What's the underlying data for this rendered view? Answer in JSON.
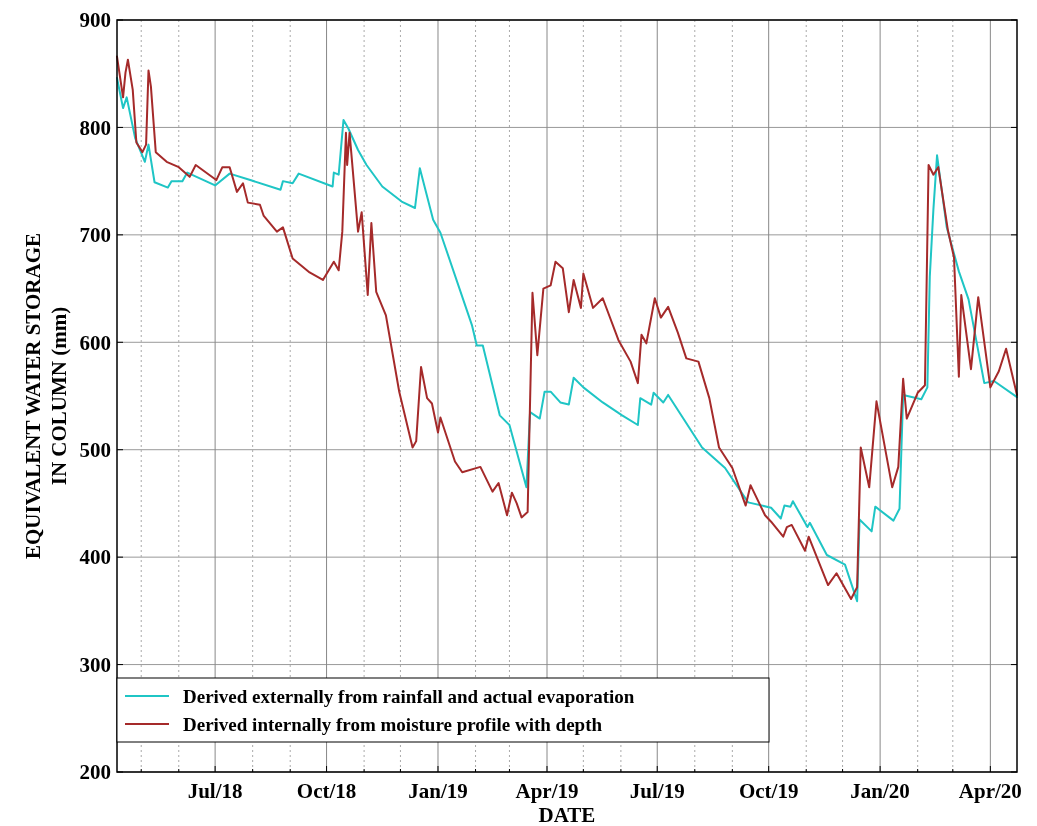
{
  "chart_data": {
    "type": "line",
    "xlabel": "DATE",
    "ylabel": "EQUIVALENT WATER STORAGE\nIN COLUMN (mm)",
    "xlim": [
      "2018-04-11",
      "2020-04-23"
    ],
    "xticks": [
      {
        "value": "2018-05-01",
        "label": null
      },
      {
        "value": "2018-06-01",
        "label": null
      },
      {
        "value": "2018-07-01",
        "label": "Jul/18"
      },
      {
        "value": "2018-08-01",
        "label": null
      },
      {
        "value": "2018-09-01",
        "label": null
      },
      {
        "value": "2018-10-01",
        "label": "Oct/18"
      },
      {
        "value": "2018-11-01",
        "label": null
      },
      {
        "value": "2018-12-01",
        "label": null
      },
      {
        "value": "2019-01-01",
        "label": "Jan/19"
      },
      {
        "value": "2019-02-01",
        "label": null
      },
      {
        "value": "2019-03-01",
        "label": null
      },
      {
        "value": "2019-04-01",
        "label": "Apr/19"
      },
      {
        "value": "2019-05-01",
        "label": null
      },
      {
        "value": "2019-06-01",
        "label": null
      },
      {
        "value": "2019-07-01",
        "label": "Jul/19"
      },
      {
        "value": "2019-08-01",
        "label": null
      },
      {
        "value": "2019-09-01",
        "label": null
      },
      {
        "value": "2019-10-01",
        "label": "Oct/19"
      },
      {
        "value": "2019-11-01",
        "label": null
      },
      {
        "value": "2019-12-01",
        "label": null
      },
      {
        "value": "2020-01-01",
        "label": "Jan/20"
      },
      {
        "value": "2020-02-01",
        "label": null
      },
      {
        "value": "2020-03-01",
        "label": null
      },
      {
        "value": "2020-04-01",
        "label": "Apr/20"
      }
    ],
    "ylim": [
      200,
      900
    ],
    "yticks": [
      200,
      300,
      400,
      500,
      600,
      700,
      800,
      900
    ],
    "grid": true,
    "legend": "bottom left",
    "line_style": "solid",
    "marker": "none",
    "series": [
      {
        "name": "Derived externally from rainfall and actual evaporation",
        "color": "#1fc5c5",
        "x": [
          "2018-04-11",
          "2018-04-16",
          "2018-04-19",
          "2018-04-26",
          "2018-05-04",
          "2018-05-07",
          "2018-05-12",
          "2018-05-23",
          "2018-05-26",
          "2018-06-04",
          "2018-06-08",
          "2018-07-01",
          "2018-07-13",
          "2018-07-30",
          "2018-08-24",
          "2018-08-26",
          "2018-09-03",
          "2018-09-08",
          "2018-10-06",
          "2018-10-07",
          "2018-10-11",
          "2018-10-15",
          "2018-10-19",
          "2018-10-27",
          "2018-11-03",
          "2018-11-16",
          "2018-12-02",
          "2018-12-13",
          "2018-12-17",
          "2018-12-28",
          "2019-01-03",
          "2019-01-29",
          "2019-02-02",
          "2019-02-07",
          "2019-02-21",
          "2019-03-01",
          "2019-03-15",
          "2019-03-18",
          "2019-03-26",
          "2019-03-30",
          "2019-04-04",
          "2019-04-12",
          "2019-04-19",
          "2019-04-23",
          "2019-05-01",
          "2019-05-17",
          "2019-06-02",
          "2019-06-15",
          "2019-06-17",
          "2019-06-26",
          "2019-06-28",
          "2019-07-06",
          "2019-07-10",
          "2019-08-07",
          "2019-08-26",
          "2019-09-14",
          "2019-10-03",
          "2019-10-11",
          "2019-10-14",
          "2019-10-19",
          "2019-10-21",
          "2019-11-02",
          "2019-11-04",
          "2019-11-18",
          "2019-12-03",
          "2019-12-13",
          "2019-12-15",
          "2019-12-25",
          "2019-12-28",
          "2020-01-12",
          "2020-01-17",
          "2020-01-20",
          "2020-02-04",
          "2020-02-09",
          "2020-02-11",
          "2020-02-14",
          "2020-02-17",
          "2020-02-25",
          "2020-03-06",
          "2020-03-14",
          "2020-03-27",
          "2020-04-04",
          "2020-04-23"
        ],
        "values": [
          846,
          818,
          828,
          790,
          768,
          784,
          749,
          744,
          750,
          750,
          758,
          746,
          757,
          751,
          742,
          750,
          748,
          757,
          745,
          758,
          756,
          807,
          799,
          779,
          765,
          745,
          731,
          725,
          762,
          714,
          702,
          616,
          597,
          597,
          532,
          523,
          465,
          535,
          529,
          554,
          554,
          544,
          542,
          567,
          558,
          544,
          532,
          523,
          548,
          542,
          553,
          544,
          551,
          502,
          483,
          451,
          446,
          436,
          448,
          447,
          452,
          428,
          432,
          402,
          393,
          359,
          435,
          424,
          447,
          434,
          445,
          551,
          547,
          558,
          661,
          724,
          774,
          707,
          666,
          640,
          562,
          564,
          549
        ]
      },
      {
        "name": "Derived internally from moisture profile with depth",
        "color": "#a52a2a",
        "x": [
          "2018-04-11",
          "2018-04-16",
          "2018-04-18",
          "2018-04-20",
          "2018-04-24",
          "2018-04-27",
          "2018-05-02",
          "2018-05-05",
          "2018-05-07",
          "2018-05-09",
          "2018-05-13",
          "2018-05-22",
          "2018-06-01",
          "2018-06-10",
          "2018-06-15",
          "2018-06-26",
          "2018-07-02",
          "2018-07-07",
          "2018-07-13",
          "2018-07-19",
          "2018-07-24",
          "2018-07-28",
          "2018-08-07",
          "2018-08-10",
          "2018-08-21",
          "2018-08-26",
          "2018-09-03",
          "2018-09-17",
          "2018-09-28",
          "2018-10-07",
          "2018-10-11",
          "2018-10-14",
          "2018-10-17",
          "2018-10-18",
          "2018-10-20",
          "2018-10-27",
          "2018-10-30",
          "2018-11-04",
          "2018-11-07",
          "2018-11-11",
          "2018-11-19",
          "2018-11-30",
          "2018-12-11",
          "2018-12-14",
          "2018-12-18",
          "2018-12-23",
          "2018-12-27",
          "2019-01-01",
          "2019-01-03",
          "2019-01-15",
          "2019-01-21",
          "2019-02-05",
          "2019-02-15",
          "2019-02-20",
          "2019-02-27",
          "2019-03-03",
          "2019-03-07",
          "2019-03-11",
          "2019-03-16",
          "2019-03-20",
          "2019-03-24",
          "2019-03-29",
          "2019-04-04",
          "2019-04-08",
          "2019-04-14",
          "2019-04-19",
          "2019-04-23",
          "2019-04-29",
          "2019-05-01",
          "2019-05-09",
          "2019-05-17",
          "2019-05-30",
          "2019-06-09",
          "2019-06-15",
          "2019-06-18",
          "2019-06-22",
          "2019-06-29",
          "2019-07-04",
          "2019-07-10",
          "2019-07-18",
          "2019-07-25",
          "2019-08-04",
          "2019-08-13",
          "2019-08-21",
          "2019-09-01",
          "2019-09-12",
          "2019-09-16",
          "2019-09-28",
          "2019-10-03",
          "2019-10-13",
          "2019-10-16",
          "2019-10-20",
          "2019-10-31",
          "2019-11-03",
          "2019-11-19",
          "2019-11-26",
          "2019-12-08",
          "2019-12-13",
          "2019-12-16",
          "2019-12-23",
          "2019-12-29",
          "2020-01-11",
          "2020-01-16",
          "2020-01-20",
          "2020-01-23",
          "2020-02-01",
          "2020-02-07",
          "2020-02-10",
          "2020-02-14",
          "2020-02-18",
          "2020-02-26",
          "2020-03-02",
          "2020-03-06",
          "2020-03-08",
          "2020-03-16",
          "2020-03-22",
          "2020-04-01",
          "2020-04-08",
          "2020-04-14",
          "2020-04-23"
        ],
        "values": [
          866,
          828,
          851,
          863,
          835,
          786,
          777,
          784,
          853,
          838,
          777,
          768,
          763,
          754,
          765,
          756,
          751,
          763,
          763,
          740,
          748,
          730,
          728,
          718,
          703,
          707,
          678,
          665,
          658,
          675,
          667,
          703,
          795,
          765,
          795,
          703,
          721,
          644,
          711,
          647,
          625,
          554,
          502,
          508,
          577,
          548,
          543,
          516,
          530,
          489,
          479,
          484,
          461,
          469,
          439,
          460,
          450,
          437,
          442,
          646,
          588,
          650,
          653,
          675,
          669,
          628,
          658,
          632,
          664,
          632,
          641,
          602,
          582,
          562,
          607,
          599,
          641,
          623,
          633,
          609,
          585,
          582,
          548,
          502,
          483,
          448,
          467,
          439,
          433,
          419,
          428,
          430,
          406,
          419,
          374,
          385,
          361,
          372,
          502,
          465,
          545,
          465,
          484,
          566,
          529,
          553,
          560,
          765,
          756,
          763,
          704,
          679,
          568,
          644,
          575,
          642,
          558,
          573,
          594,
          551
        ]
      }
    ]
  }
}
